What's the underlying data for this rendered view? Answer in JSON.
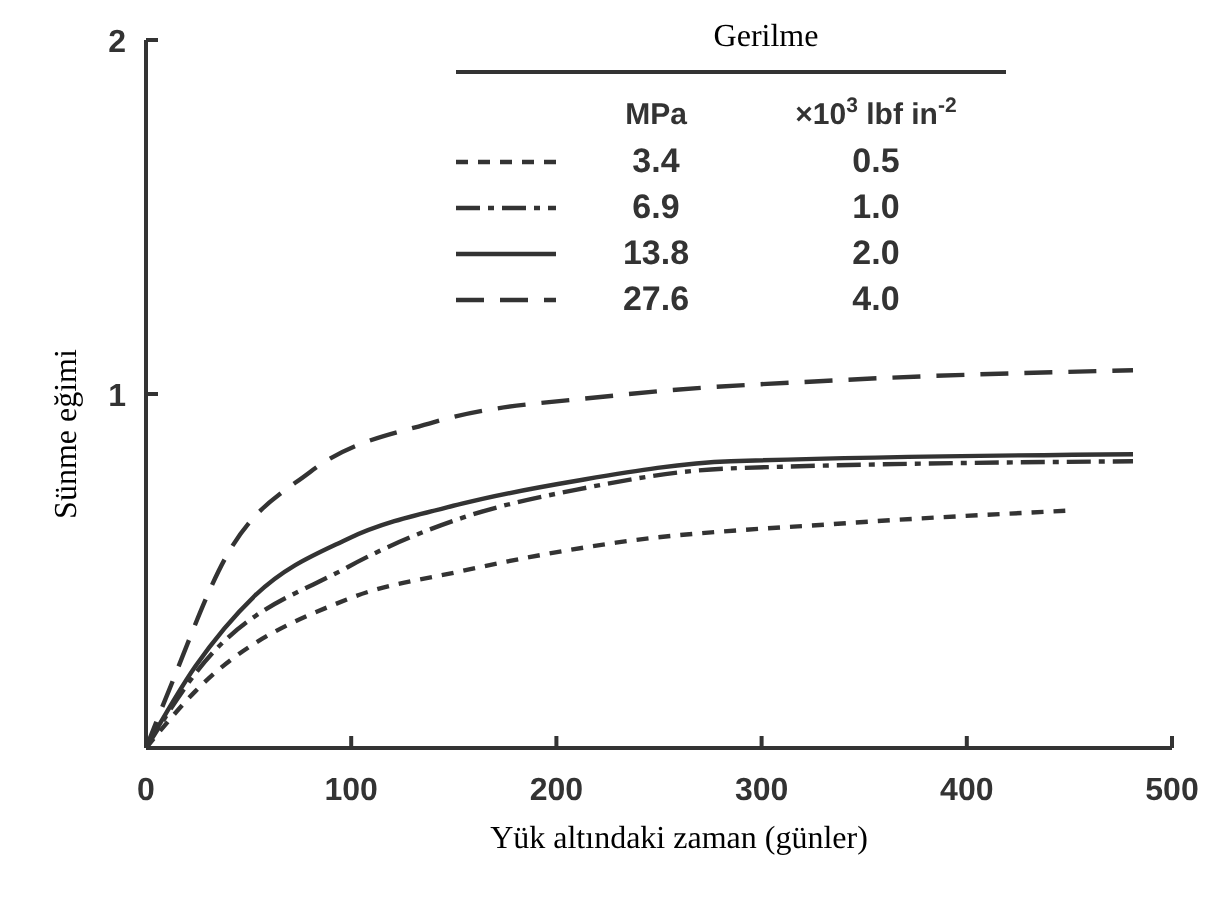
{
  "chart_data": {
    "type": "line",
    "xlabel": "Yük altındaki zaman (günler)",
    "ylabel": "Sünme eğimi",
    "xlim": [
      0,
      500
    ],
    "xticks": [
      0,
      100,
      200,
      300,
      400,
      500
    ],
    "ylim": [
      0,
      2
    ],
    "yticks": [
      {
        "value": 0,
        "label": null
      },
      1,
      2
    ],
    "tick_labels": "xy",
    "legend": "top",
    "legend_title": "Gerilme",
    "marker": "none",
    "annotations": [
      "MPa",
      "×10$^{3}$ lbf in$^{-2}$",
      "0.5",
      "1.0",
      "2.0",
      "4.0"
    ],
    "series": [
      {
        "name": "3.4",
        "color": "#333333",
        "line_style": "dashed",
        "x": [
          0,
          24,
          98,
          154,
          229,
          341,
          448
        ],
        "values": [
          0,
          0.16,
          0.42,
          0.5,
          0.58,
          0.635,
          0.67
        ]
      },
      {
        "name": "6.9",
        "color": "#333333",
        "line_style": "dashdot",
        "x": [
          0,
          24,
          98,
          154,
          210,
          285,
          481
        ],
        "values": [
          0,
          0.21,
          0.51,
          0.65,
          0.73,
          0.79,
          0.81
        ]
      },
      {
        "name": "13.8",
        "color": "#333333",
        "line_style": "solid",
        "x": [
          0,
          24,
          53,
          98,
          154,
          210,
          285,
          481
        ],
        "values": [
          0,
          0.23,
          0.43,
          0.59,
          0.69,
          0.755,
          0.81,
          0.83
        ]
      },
      {
        "name": "27.6",
        "color": "#333333",
        "line_style": "longdash",
        "x": [
          0,
          11,
          39,
          80,
          140,
          229,
          341,
          481
        ],
        "values": [
          0,
          0.16,
          0.54,
          0.78,
          0.92,
          0.996,
          1.04,
          1.067
        ]
      }
    ]
  }
}
